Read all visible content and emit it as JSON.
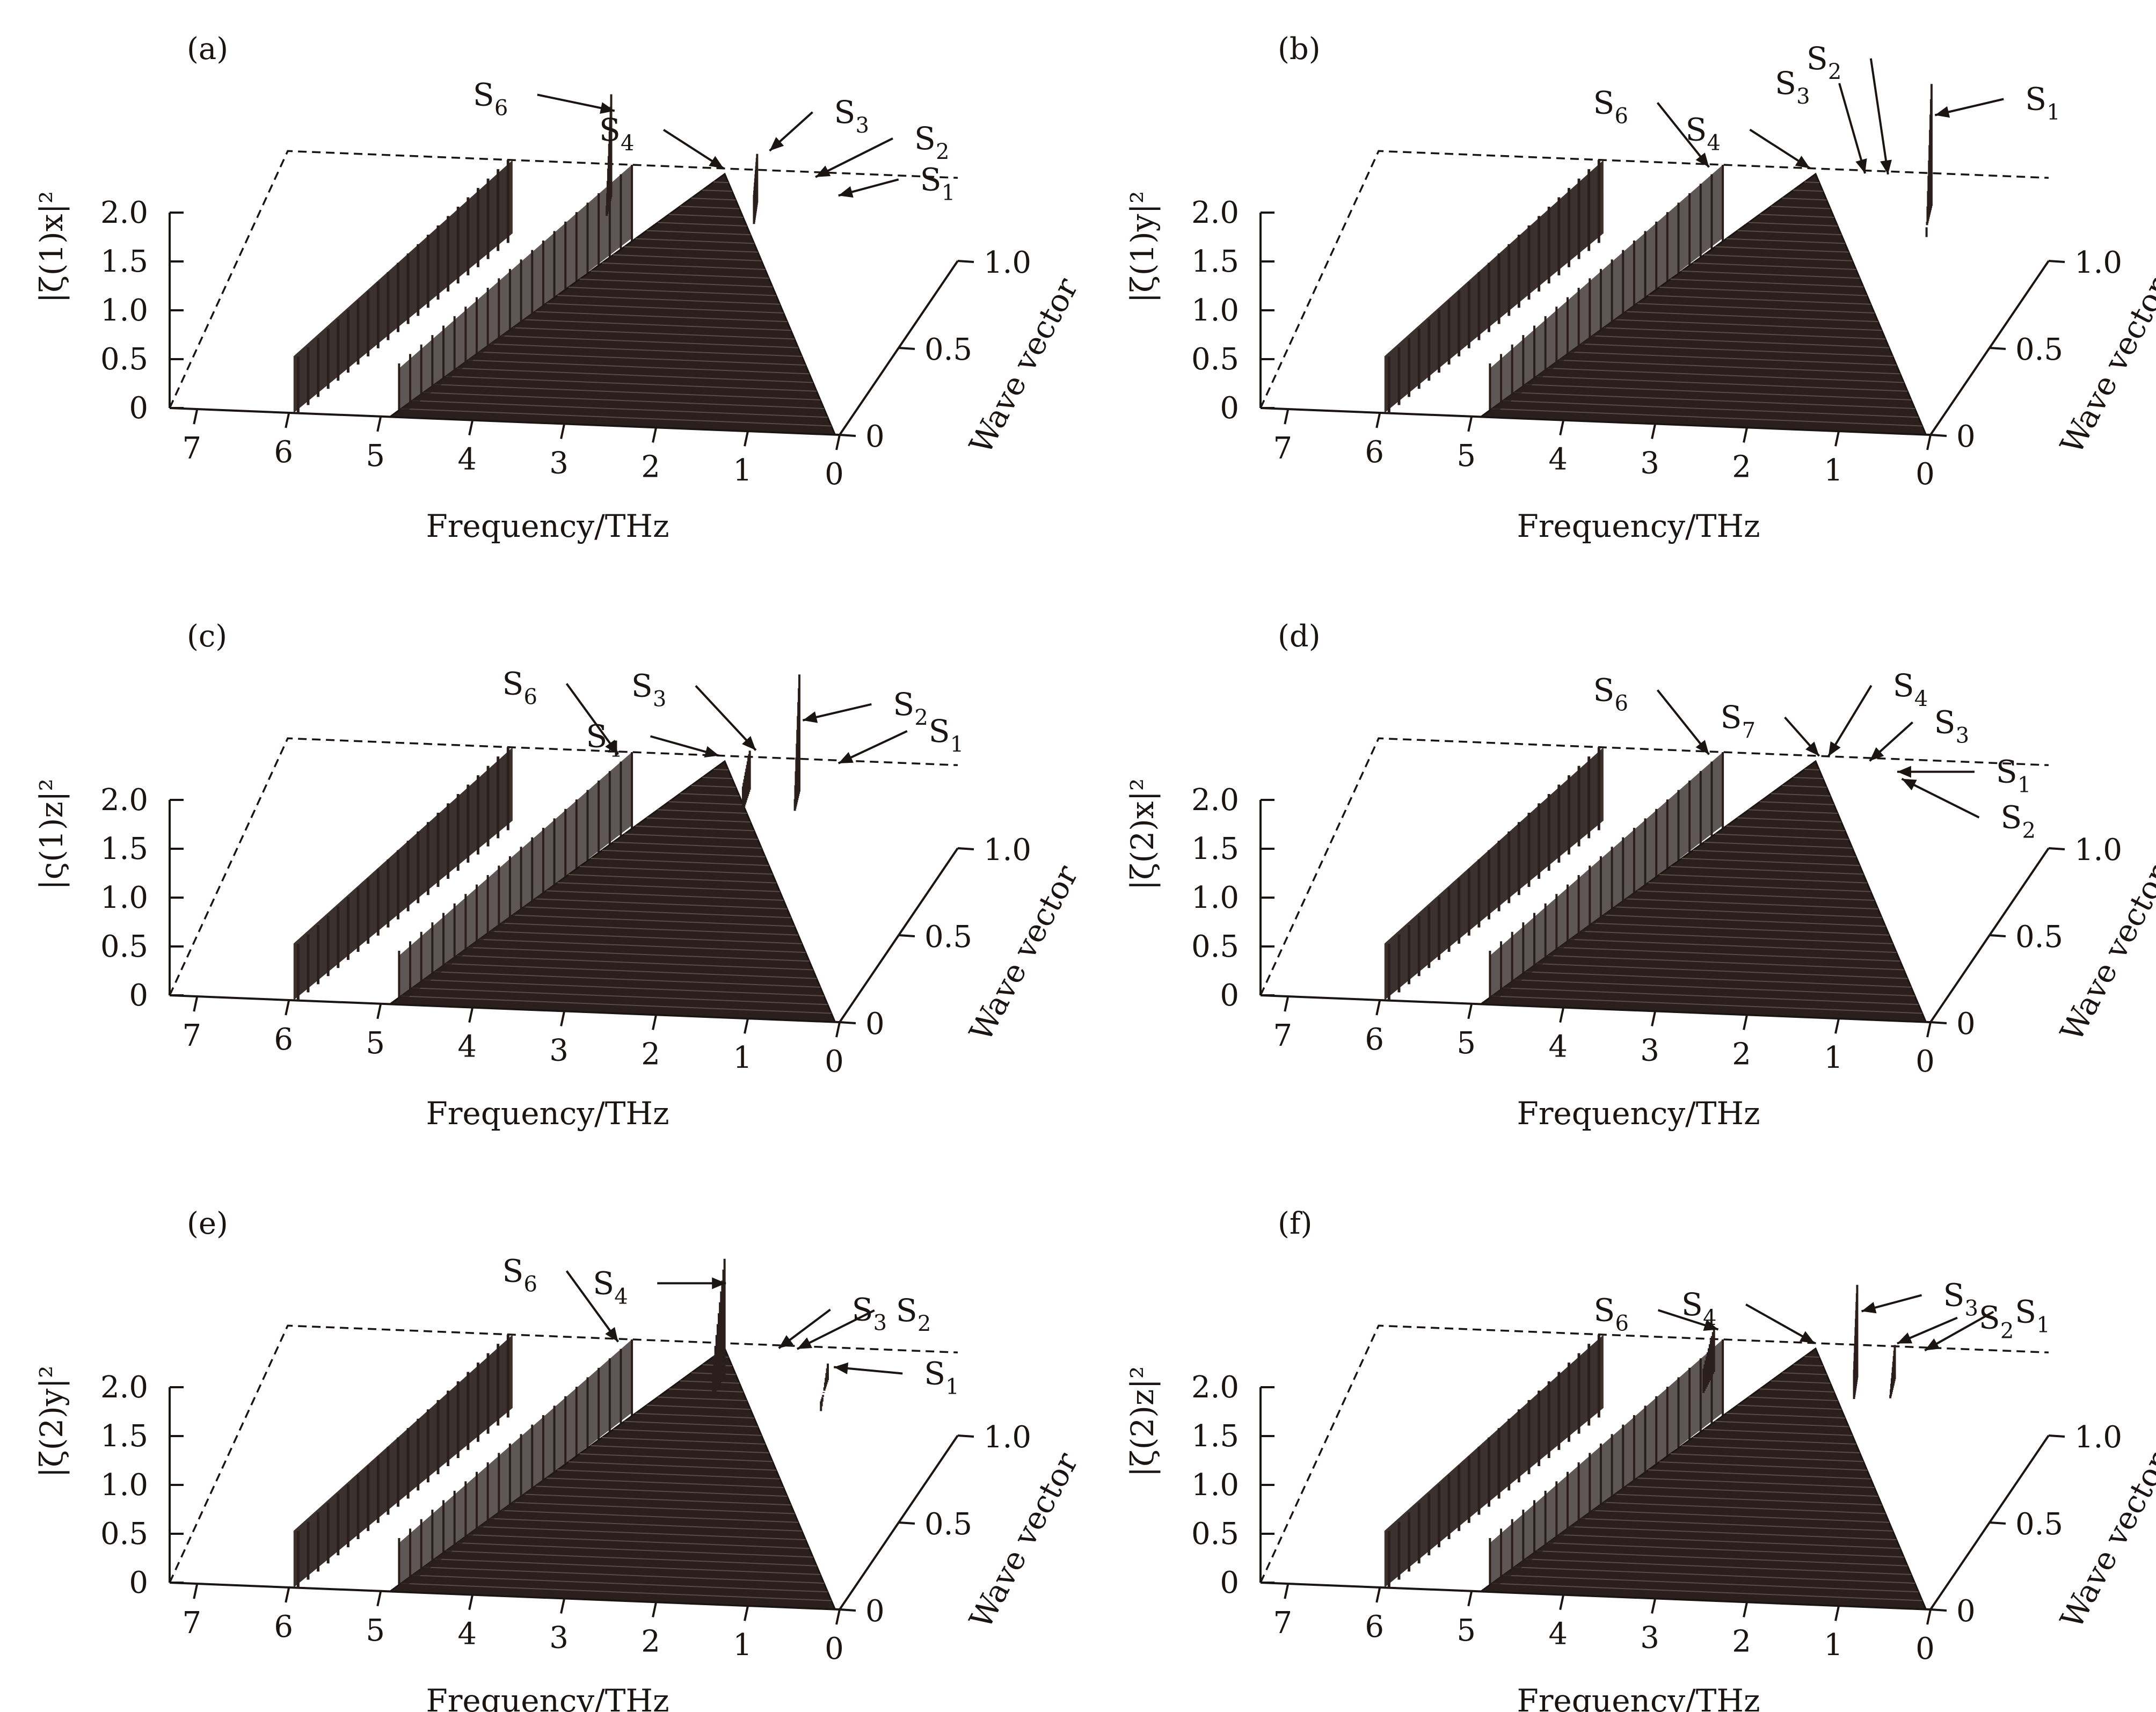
{
  "colors": {
    "ink": "#1a1413",
    "surface": "#2a1f1c",
    "background": "#ffffff"
  },
  "chart_data": [
    {
      "type": "scatter",
      "projection": "3d-waterfall",
      "panel": "(a)",
      "ylabel": "|ζ(1)x|²",
      "xlabel": "Frequency/THz",
      "zlabel": "Wave vector",
      "x_ticks": [
        "7",
        "6",
        "5",
        "4",
        "3",
        "2",
        "1",
        "0"
      ],
      "y_ticks": [
        "0",
        "0.5",
        "1.0",
        "1.5",
        "2.0"
      ],
      "z_ticks": [
        "0",
        "0.5",
        "1.0"
      ],
      "xlim": [
        0,
        7.3
      ],
      "ylim": [
        0,
        2.0
      ],
      "zlim": [
        0,
        1.0
      ],
      "branches": [
        {
          "f0": 5.9,
          "f1": 4.9,
          "base": 0.58
        },
        {
          "f0": 4.8,
          "f1": 3.55,
          "base": 0.55
        },
        {
          "f0": 0,
          "f1": 2.5,
          "base": 0.7,
          "peak": 0.85
        },
        {
          "f0": 3.2,
          "f1": 2.5,
          "base": 0.5,
          "peak": 0.85
        }
      ],
      "spikes": [
        {
          "f": 3.7,
          "h0": 0.55,
          "h1": 1.6,
          "w": 0.1
        },
        {
          "f": 2.1,
          "h0": 0.85,
          "h1": 1.05,
          "w": 0.12
        }
      ],
      "peaks": [
        {
          "name": "S",
          "sub": "6",
          "f": 3.7,
          "z": 0.97,
          "h": 1.45,
          "lx": -0.9,
          "ly": 0.05
        },
        {
          "name": "S",
          "sub": "4",
          "f": 2.55,
          "z": 1.0,
          "h": 0.85,
          "lx": -0.7,
          "ly": 0.12
        },
        {
          "name": "S",
          "sub": "3",
          "f": 2.05,
          "z": 1.0,
          "h": 1.05,
          "lx": 0.5,
          "ly": 0.12
        },
        {
          "name": "S",
          "sub": "2",
          "f": 1.55,
          "z": 1.0,
          "h": 0.8,
          "lx": 0.9,
          "ly": 0.12
        },
        {
          "name": "S",
          "sub": "1",
          "f": 1.3,
          "z": 1.0,
          "h": 0.62,
          "lx": 0.7,
          "ly": 0.05
        }
      ]
    },
    {
      "type": "scatter",
      "projection": "3d-waterfall",
      "panel": "(b)",
      "ylabel": "|ζ(1)y|²",
      "xlabel": "Frequency/THz",
      "zlabel": "Wave vector",
      "x_ticks": [
        "7",
        "6",
        "5",
        "4",
        "3",
        "2",
        "1",
        "0"
      ],
      "y_ticks": [
        "0",
        "0.5",
        "1.0",
        "1.5",
        "2.0"
      ],
      "z_ticks": [
        "0",
        "0.5",
        "1.0"
      ],
      "xlim": [
        0,
        7.3
      ],
      "ylim": [
        0,
        2.0
      ],
      "zlim": [
        0,
        1.0
      ],
      "branches": [
        {
          "f0": 5.9,
          "f1": 4.9,
          "base": 0.58
        },
        {
          "f0": 4.8,
          "f1": 3.55,
          "base": 0.55
        },
        {
          "f0": 0,
          "f1": 2.5,
          "base": 0.7,
          "peak": 0.85
        },
        {
          "f0": 3.2,
          "f1": 2.5,
          "base": 0.5,
          "peak": 0.85
        }
      ],
      "spikes": [
        {
          "f": 1.2,
          "h0": 0.45,
          "h1": 1.8,
          "w": 0.1
        }
      ],
      "peaks": [
        {
          "name": "S",
          "sub": "1",
          "f": 1.2,
          "z": 0.97,
          "h": 1.5,
          "lx": 0.8,
          "ly": 0.05
        },
        {
          "name": "S",
          "sub": "6",
          "f": 3.7,
          "z": 1.0,
          "h": 0.82,
          "lx": -0.6,
          "ly": 0.2
        },
        {
          "name": "S",
          "sub": "4",
          "f": 2.6,
          "z": 1.0,
          "h": 0.85,
          "lx": -0.7,
          "ly": 0.12
        },
        {
          "name": "S",
          "sub": "3",
          "f": 2.0,
          "z": 1.0,
          "h": 0.82,
          "lx": -0.3,
          "ly": 0.28
        },
        {
          "name": "S",
          "sub": "2",
          "f": 1.75,
          "z": 1.0,
          "h": 0.82,
          "lx": -0.2,
          "ly": 0.36
        }
      ]
    },
    {
      "type": "scatter",
      "projection": "3d-waterfall",
      "panel": "(c)",
      "ylabel": "|ς(1)z|²",
      "xlabel": "Frequency/THz",
      "zlabel": "Wave vector",
      "x_ticks": [
        "7",
        "6",
        "5",
        "4",
        "3",
        "2",
        "1",
        "0"
      ],
      "y_ticks": [
        "0",
        "0.5",
        "1.0",
        "1.5",
        "2.0"
      ],
      "z_ticks": [
        "0",
        "0.5",
        "1.0"
      ],
      "xlim": [
        0,
        7.3
      ],
      "ylim": [
        0,
        2.0
      ],
      "zlim": [
        0,
        1.0
      ],
      "branches": [
        {
          "f0": 5.9,
          "f1": 4.9,
          "base": 0.58
        },
        {
          "f0": 4.8,
          "f1": 3.55,
          "base": 0.55
        },
        {
          "f0": 0,
          "f1": 2.5,
          "base": 0.7,
          "peak": 0.85
        },
        {
          "f0": 3.2,
          "f1": 2.5,
          "base": 0.5,
          "peak": 0.85
        }
      ],
      "spikes": [
        {
          "f": 1.65,
          "h0": 0.55,
          "h1": 1.75,
          "w": 0.1
        },
        {
          "f": 2.2,
          "h0": 0.8,
          "h1": 0.95,
          "w": 0.08
        }
      ],
      "peaks": [
        {
          "name": "S",
          "sub": "2",
          "f": 1.65,
          "z": 0.97,
          "h": 1.3,
          "lx": 0.8,
          "ly": 0.05
        },
        {
          "name": "S",
          "sub": "6",
          "f": 3.7,
          "z": 1.0,
          "h": 0.82,
          "lx": -0.6,
          "ly": 0.22
        },
        {
          "name": "S",
          "sub": "3",
          "f": 2.2,
          "z": 1.0,
          "h": 0.92,
          "lx": -0.7,
          "ly": 0.2
        },
        {
          "name": "S",
          "sub": "4",
          "f": 2.6,
          "z": 1.0,
          "h": 0.85,
          "lx": -0.8,
          "ly": 0.06
        },
        {
          "name": "S",
          "sub": "1",
          "f": 1.3,
          "z": 1.0,
          "h": 0.82,
          "lx": 0.8,
          "ly": 0.1
        }
      ]
    },
    {
      "type": "scatter",
      "projection": "3d-waterfall",
      "panel": "(d)",
      "ylabel": "|ζ(2)x|²",
      "xlabel": "Frequency/THz",
      "zlabel": "Wave vector",
      "x_ticks": [
        "7",
        "6",
        "5",
        "4",
        "3",
        "2",
        "1",
        "0"
      ],
      "y_ticks": [
        "0",
        "0.5",
        "1.0",
        "1.5",
        "2.0"
      ],
      "z_ticks": [
        "0",
        "0.5",
        "1.0"
      ],
      "xlim": [
        0,
        7.3
      ],
      "ylim": [
        0,
        2.0
      ],
      "zlim": [
        0,
        1.0
      ],
      "branches": [
        {
          "f0": 5.9,
          "f1": 4.9,
          "base": 0.58
        },
        {
          "f0": 4.8,
          "f1": 3.55,
          "base": 0.55
        },
        {
          "f0": 0,
          "f1": 2.5,
          "base": 0.7,
          "peak": 0.85
        },
        {
          "f0": 3.2,
          "f1": 2.5,
          "base": 0.5,
          "peak": 0.85
        }
      ],
      "spikes": [],
      "peaks": [
        {
          "name": "S",
          "sub": "6",
          "f": 3.7,
          "z": 1.0,
          "h": 0.82,
          "lx": -0.6,
          "ly": 0.2
        },
        {
          "name": "S",
          "sub": "7",
          "f": 2.5,
          "z": 1.0,
          "h": 0.85,
          "lx": -0.4,
          "ly": 0.12
        },
        {
          "name": "S",
          "sub": "4",
          "f": 2.4,
          "z": 1.0,
          "h": 0.85,
          "lx": 0.5,
          "ly": 0.22
        },
        {
          "name": "S",
          "sub": "3",
          "f": 1.95,
          "z": 1.0,
          "h": 0.82,
          "lx": 0.5,
          "ly": 0.12
        },
        {
          "name": "S",
          "sub": "1",
          "f": 1.65,
          "z": 1.0,
          "h": 0.72,
          "lx": 0.9,
          "ly": 0.0
        },
        {
          "name": "S",
          "sub": "2",
          "f": 1.6,
          "z": 1.0,
          "h": 0.65,
          "lx": 0.9,
          "ly": -0.12
        }
      ]
    },
    {
      "type": "scatter",
      "projection": "3d-waterfall",
      "panel": "(e)",
      "ylabel": "|ζ(2)y|²",
      "xlabel": "Frequency/THz",
      "zlabel": "Wave vector",
      "x_ticks": [
        "7",
        "6",
        "5",
        "4",
        "3",
        "2",
        "1",
        "0"
      ],
      "y_ticks": [
        "0",
        "0.5",
        "1.0",
        "1.5",
        "2.0"
      ],
      "z_ticks": [
        "0",
        "0.5",
        "1.0"
      ],
      "xlim": [
        0,
        7.3
      ],
      "ylim": [
        0,
        2.0
      ],
      "zlim": [
        0,
        1.0
      ],
      "branches": [
        {
          "f0": 5.9,
          "f1": 4.9,
          "base": 0.58
        },
        {
          "f0": 4.8,
          "f1": 3.55,
          "base": 0.55
        },
        {
          "f0": 0,
          "f1": 2.5,
          "base": 0.7,
          "peak": 0.85
        },
        {
          "f0": 3.2,
          "f1": 2.5,
          "base": 0.5,
          "peak": 0.85
        }
      ],
      "spikes": [
        {
          "f": 2.5,
          "h0": 0.85,
          "h1": 1.75,
          "w": 0.03
        },
        {
          "f": 1.35,
          "h0": 0.45,
          "h1": 0.72,
          "w": 0.08
        }
      ],
      "peaks": [
        {
          "name": "S",
          "sub": "4",
          "f": 2.5,
          "z": 0.98,
          "h": 1.5,
          "lx": -0.8,
          "ly": 0.0
        },
        {
          "name": "S",
          "sub": "6",
          "f": 3.7,
          "z": 1.0,
          "h": 0.82,
          "lx": -0.6,
          "ly": 0.22
        },
        {
          "name": "S",
          "sub": "3",
          "f": 1.95,
          "z": 1.0,
          "h": 0.82,
          "lx": 0.6,
          "ly": 0.12
        },
        {
          "name": "S",
          "sub": "2",
          "f": 1.75,
          "z": 1.0,
          "h": 0.82,
          "lx": 0.9,
          "ly": 0.12
        },
        {
          "name": "S",
          "sub": "1",
          "f": 1.35,
          "z": 1.0,
          "h": 0.65,
          "lx": 0.8,
          "ly": -0.02
        }
      ]
    },
    {
      "type": "scatter",
      "projection": "3d-waterfall",
      "panel": "(f)",
      "ylabel": "|ζ(2)z|²",
      "xlabel": "Frequency/THz",
      "zlabel": "Wave vector",
      "x_ticks": [
        "7",
        "6",
        "5",
        "4",
        "3",
        "2",
        "1",
        "0"
      ],
      "y_ticks": [
        "0",
        "0.5",
        "1.0",
        "1.5",
        "2.0"
      ],
      "z_ticks": [
        "0",
        "0.5",
        "1.0"
      ],
      "xlim": [
        0,
        7.3
      ],
      "ylim": [
        0,
        2.0
      ],
      "zlim": [
        0,
        1.0
      ],
      "branches": [
        {
          "f0": 5.9,
          "f1": 4.9,
          "base": 0.58
        },
        {
          "f0": 4.8,
          "f1": 3.55,
          "base": 0.55
        },
        {
          "f0": 0,
          "f1": 2.5,
          "base": 0.7,
          "peak": 0.85
        },
        {
          "f0": 3.2,
          "f1": 2.5,
          "base": 0.5,
          "peak": 0.85
        }
      ],
      "spikes": [
        {
          "f": 2.0,
          "h0": 0.85,
          "h1": 1.5,
          "w": 0.12
        },
        {
          "f": 1.6,
          "h0": 0.55,
          "h1": 0.9,
          "w": 0.1
        },
        {
          "f": 3.6,
          "h0": 0.8,
          "h1": 1.0,
          "w": 0.04
        }
      ],
      "peaks": [
        {
          "name": "S",
          "sub": "3",
          "f": 2.0,
          "z": 0.97,
          "h": 1.25,
          "lx": 0.7,
          "ly": 0.05
        },
        {
          "name": "S",
          "sub": "6",
          "f": 3.6,
          "z": 1.0,
          "h": 0.95,
          "lx": -0.7,
          "ly": 0.06
        },
        {
          "name": "S",
          "sub": "4",
          "f": 2.55,
          "z": 1.0,
          "h": 0.85,
          "lx": -0.8,
          "ly": 0.12
        },
        {
          "name": "S",
          "sub": "2",
          "f": 1.65,
          "z": 1.0,
          "h": 0.88,
          "lx": 0.7,
          "ly": 0.08
        },
        {
          "name": "S",
          "sub": "1",
          "f": 1.35,
          "z": 1.0,
          "h": 0.82,
          "lx": 0.8,
          "ly": 0.12
        }
      ]
    }
  ]
}
